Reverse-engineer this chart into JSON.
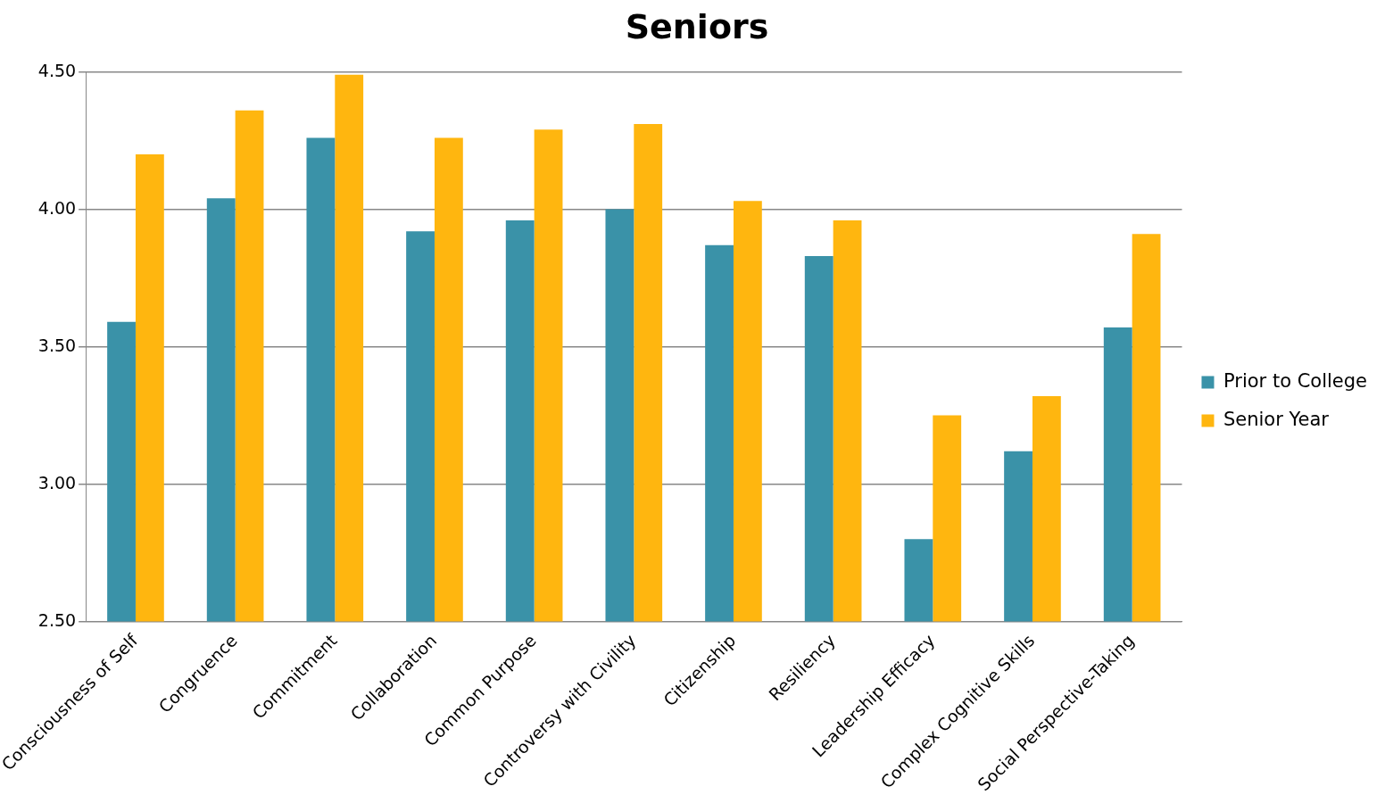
{
  "chart_data": {
    "type": "bar",
    "title": "Seniors",
    "categories": [
      "Consciousness of Self",
      "Congruence",
      "Commitment",
      "Collaboration",
      "Common Purpose",
      "Controversy with Civility",
      "Citizenship",
      "Resiliency",
      "Leadership Efficacy",
      "Complex Cognitive Skills",
      "Social Perspective-Taking"
    ],
    "series": [
      {
        "name": "Prior to College",
        "color": "#3a92a8",
        "values": [
          3.59,
          4.04,
          4.26,
          3.92,
          3.96,
          4.0,
          3.87,
          3.83,
          2.8,
          3.12,
          3.57
        ]
      },
      {
        "name": "Senior Year",
        "color": "#ffb60f",
        "values": [
          4.2,
          4.36,
          4.49,
          4.26,
          4.29,
          4.31,
          4.03,
          3.96,
          3.25,
          3.32,
          3.91
        ]
      }
    ],
    "ylim": [
      2.5,
      4.5
    ],
    "yticks": [
      {
        "value": 2.5,
        "label": "2.50"
      },
      {
        "value": 3,
        "label": "3.00"
      },
      {
        "value": 3.5,
        "label": "3.50"
      },
      {
        "value": 4,
        "label": "4.00"
      },
      {
        "value": 4.5,
        "label": "4.50"
      }
    ],
    "grid": "y",
    "legend": "right"
  }
}
